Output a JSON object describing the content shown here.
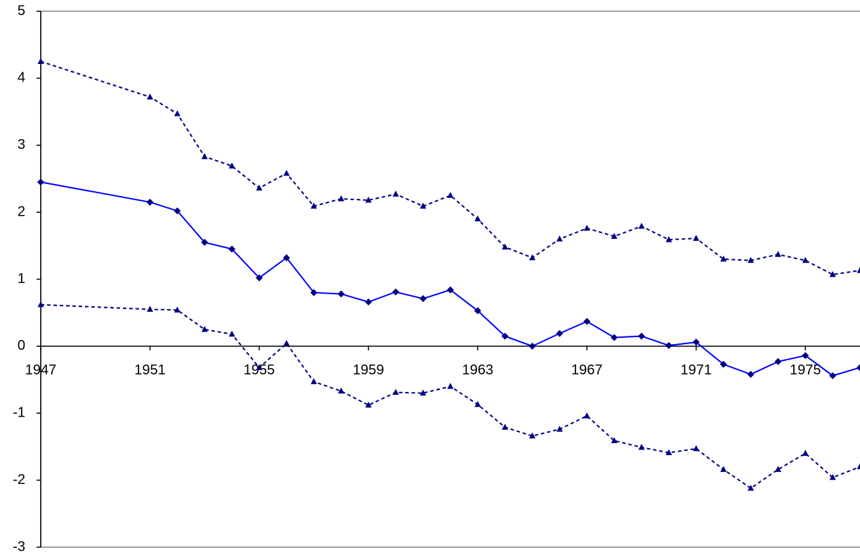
{
  "chart_data": {
    "type": "line",
    "x": [
      1947,
      1951,
      1952,
      1953,
      1954,
      1955,
      1956,
      1957,
      1958,
      1959,
      1960,
      1961,
      1962,
      1963,
      1964,
      1965,
      1966,
      1967,
      1968,
      1969,
      1970,
      1971,
      1972,
      1973,
      1974,
      1975,
      1976,
      1977
    ],
    "series": [
      {
        "color": "#0000ff",
        "marker_color": "#000080",
        "marker": "diamond",
        "line_style": "solid",
        "values": [
          2.45,
          2.15,
          2.02,
          1.55,
          1.45,
          1.02,
          1.32,
          0.8,
          0.78,
          0.66,
          0.81,
          0.71,
          0.84,
          0.53,
          0.15,
          0.0,
          0.19,
          0.37,
          0.13,
          0.15,
          0.01,
          0.06,
          -0.27,
          -0.42,
          -0.23,
          -0.14,
          -0.44,
          -0.32
        ]
      },
      {
        "color": "#000080",
        "marker_color": "#000080",
        "marker": "triangle",
        "line_style": "dashed",
        "values": [
          4.25,
          3.72,
          3.47,
          2.83,
          2.69,
          2.36,
          2.58,
          2.09,
          2.2,
          2.18,
          2.27,
          2.09,
          2.25,
          1.9,
          1.48,
          1.32,
          1.6,
          1.76,
          1.64,
          1.79,
          1.59,
          1.61,
          1.3,
          1.28,
          1.37,
          1.28,
          1.07,
          1.13
        ]
      },
      {
        "color": "#000080",
        "marker_color": "#000080",
        "marker": "triangle",
        "line_style": "dashed",
        "values": [
          0.62,
          0.55,
          0.54,
          0.25,
          0.18,
          -0.32,
          0.04,
          -0.53,
          -0.67,
          -0.88,
          -0.69,
          -0.7,
          -0.6,
          -0.87,
          -1.21,
          -1.34,
          -1.24,
          -1.04,
          -1.41,
          -1.51,
          -1.59,
          -1.53,
          -1.84,
          -2.12,
          -1.84,
          -1.6,
          -1.96,
          -1.8
        ]
      }
    ],
    "xlim": [
      1947,
      1977
    ],
    "xticks": [
      1947,
      1951,
      1955,
      1959,
      1963,
      1967,
      1971,
      1975
    ],
    "ylim": [
      -3,
      5
    ],
    "yticks": [
      -3,
      -2,
      -1,
      0,
      1,
      2,
      3,
      4,
      5
    ],
    "grid": false
  }
}
